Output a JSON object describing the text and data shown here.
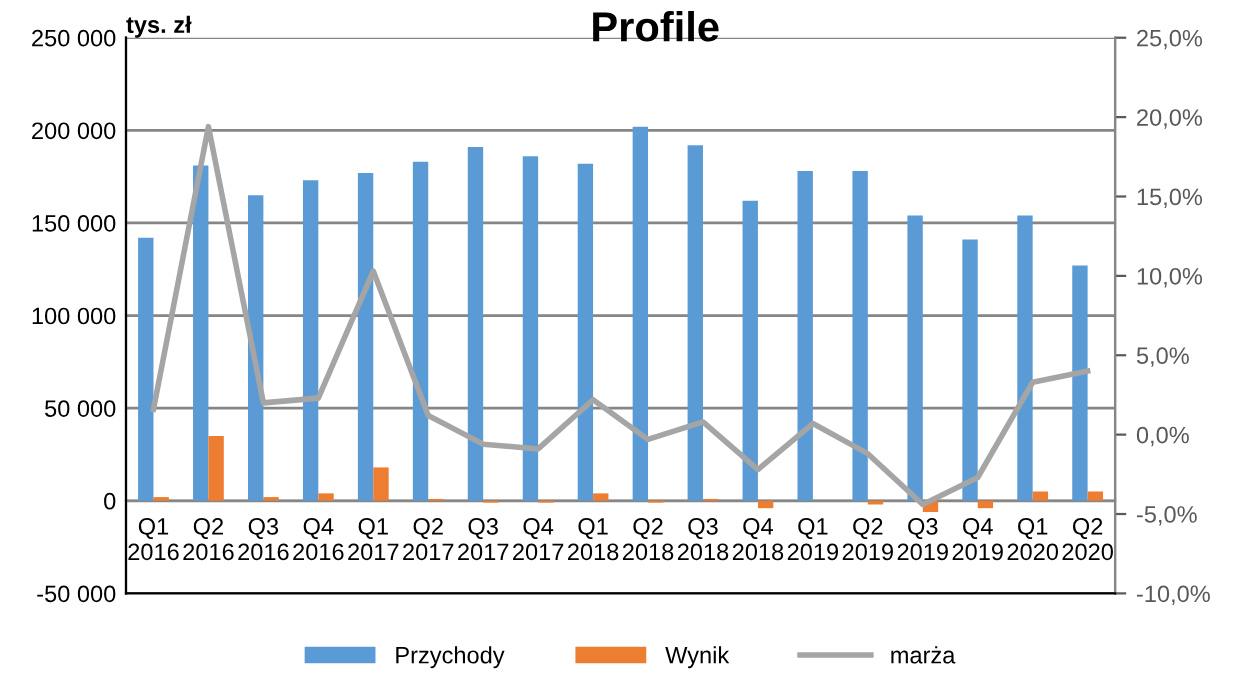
{
  "chart_data": {
    "type": "bar",
    "title": "Profile",
    "ylabel": "tys. zł",
    "categories": [
      "Q1\n2016",
      "Q2\n2016",
      "Q3\n2016",
      "Q4\n2016",
      "Q1\n2017",
      "Q2\n2017",
      "Q3\n2017",
      "Q4\n2017",
      "Q1\n2018",
      "Q2\n2018",
      "Q3\n2018",
      "Q4\n2018",
      "Q1\n2019",
      "Q2\n2019",
      "Q3\n2019",
      "Q4\n2019",
      "Q1\n2020",
      "Q2\n2020"
    ],
    "series": [
      {
        "name": "Przychody",
        "color": "#5b9bd5",
        "values": [
          142000,
          181000,
          165000,
          173000,
          177000,
          183000,
          191000,
          186000,
          182000,
          202000,
          192000,
          162000,
          178000,
          178000,
          154000,
          141000,
          154000,
          127000
        ]
      },
      {
        "name": "Wynik",
        "color": "#ed7d31",
        "values": [
          2000,
          35000,
          2000,
          4000,
          18000,
          1000,
          -1000,
          -1000,
          4000,
          -1000,
          1000,
          -4000,
          0,
          -2000,
          -6000,
          -4000,
          5000,
          5000
        ]
      },
      {
        "name": "marża",
        "type": "line",
        "axis": "y2",
        "color": "#a5a5a5",
        "values": [
          1.6,
          19.4,
          2.0,
          2.3,
          10.3,
          1.2,
          -0.6,
          -0.9,
          2.2,
          -0.3,
          0.8,
          -2.2,
          0.7,
          -1.2,
          -4.4,
          -2.7,
          3.3,
          4.0
        ]
      }
    ],
    "ylim": [
      -50000,
      250000
    ],
    "yticks": [
      {
        "value": -50000,
        "label": "-50 000"
      },
      0,
      {
        "value": 50000,
        "label": "50 000"
      },
      {
        "value": 100000,
        "label": "100 000"
      },
      {
        "value": 150000,
        "label": "150 000"
      },
      {
        "value": 200000,
        "label": "200 000"
      },
      {
        "value": 250000,
        "label": "250 000"
      }
    ],
    "y2lim": [
      -10,
      25
    ],
    "y2ticks": [
      {
        "value": -10,
        "label": "-10,0%"
      },
      {
        "value": -5,
        "label": "-5,0%"
      },
      {
        "value": 0,
        "label": "0,0%"
      },
      {
        "value": 5,
        "label": "5,0%"
      },
      {
        "value": 10,
        "label": "10,0%"
      },
      {
        "value": 15,
        "label": "15,0%"
      },
      {
        "value": 20,
        "label": "20,0%"
      },
      {
        "value": 25,
        "label": "25,0%"
      }
    ],
    "grid": "y",
    "legend": "bottom"
  }
}
